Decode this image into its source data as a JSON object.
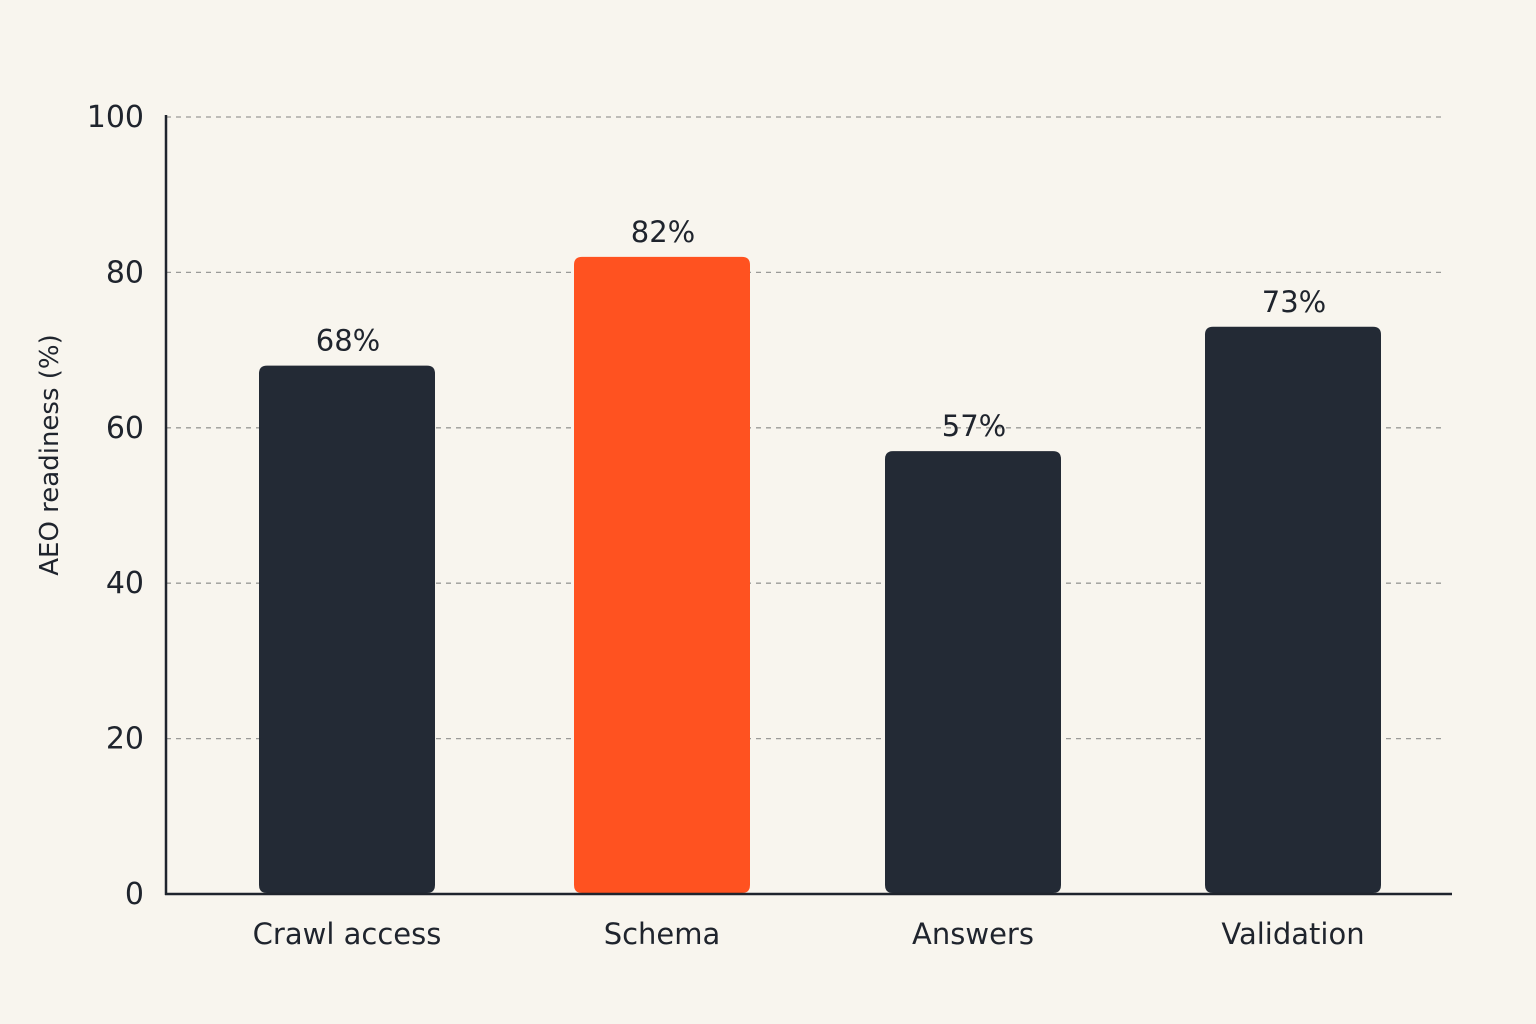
{
  "chart_data": {
    "type": "bar",
    "categories": [
      "Crawl access",
      "Schema",
      "Answers",
      "Validation"
    ],
    "values": [
      68,
      82,
      57,
      73
    ],
    "data_labels": [
      "68%",
      "82%",
      "57%",
      "73%"
    ],
    "highlight_index": 1,
    "ylabel": "AEO readiness (%)",
    "ylim": [
      0,
      100
    ],
    "yticks": [
      0,
      20,
      40,
      60,
      80,
      100
    ],
    "grid": true,
    "colors": {
      "background": "#f8f5ee",
      "bar": "#232a35",
      "highlight": "#ff5220",
      "text": "#1f242d",
      "grid": "#9a9a98"
    }
  }
}
